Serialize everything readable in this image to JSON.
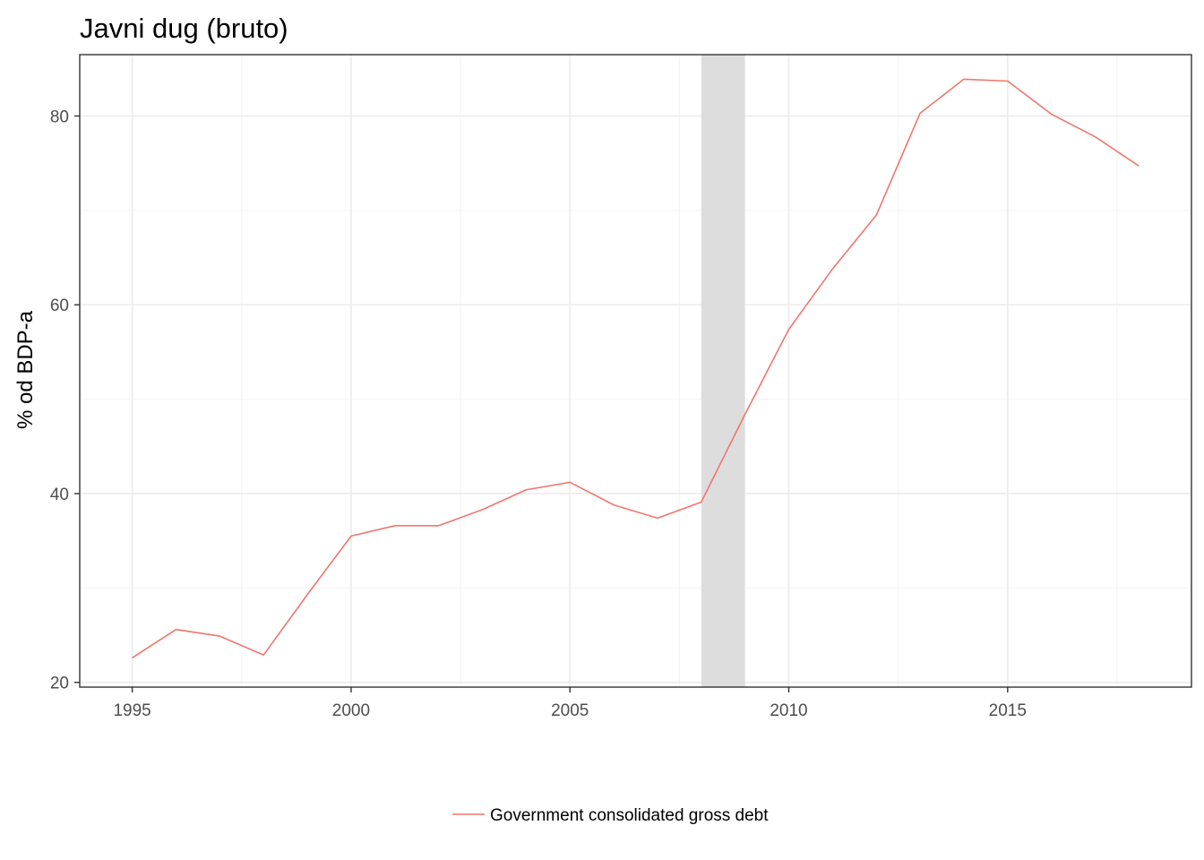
{
  "chart_data": {
    "type": "line",
    "title": "Javni dug (bruto)",
    "xlabel": "",
    "ylabel": "% od BDP-a",
    "xlim": [
      1993.8,
      2019.2
    ],
    "ylim": [
      19.5,
      86.5
    ],
    "x_ticks": [
      1995,
      2000,
      2005,
      2010,
      2015
    ],
    "x_tick_labels": [
      "1995",
      "2000",
      "2005",
      "2010",
      "2015"
    ],
    "x_minor_ticks": [
      1997.5,
      2002.5,
      2007.5,
      2012.5,
      2017.5
    ],
    "y_ticks": [
      20,
      40,
      60,
      80
    ],
    "y_tick_labels": [
      "20",
      "40",
      "60",
      "80"
    ],
    "y_minor_ticks": [
      30,
      50,
      70
    ],
    "grid": true,
    "legend_position": "bottom",
    "shaded_regions": [
      {
        "start": 2008,
        "end": 2009,
        "color": "#dddddd"
      }
    ],
    "series": [
      {
        "name": "Government consolidated gross debt",
        "color": "#f0766d",
        "x": [
          1995,
          1996,
          1997,
          1998,
          1999,
          2000,
          2001,
          2002,
          2003,
          2004,
          2005,
          2006,
          2007,
          2008,
          2009,
          2010,
          2011,
          2012,
          2013,
          2014,
          2015,
          2016,
          2017,
          2018
        ],
        "values": [
          22.6,
          25.6,
          24.9,
          22.9,
          29.3,
          35.5,
          36.6,
          36.6,
          38.3,
          40.4,
          41.2,
          38.8,
          37.4,
          39.1,
          48.4,
          57.4,
          63.8,
          69.5,
          80.3,
          83.9,
          83.7,
          80.2,
          77.8,
          74.7
        ]
      }
    ]
  }
}
